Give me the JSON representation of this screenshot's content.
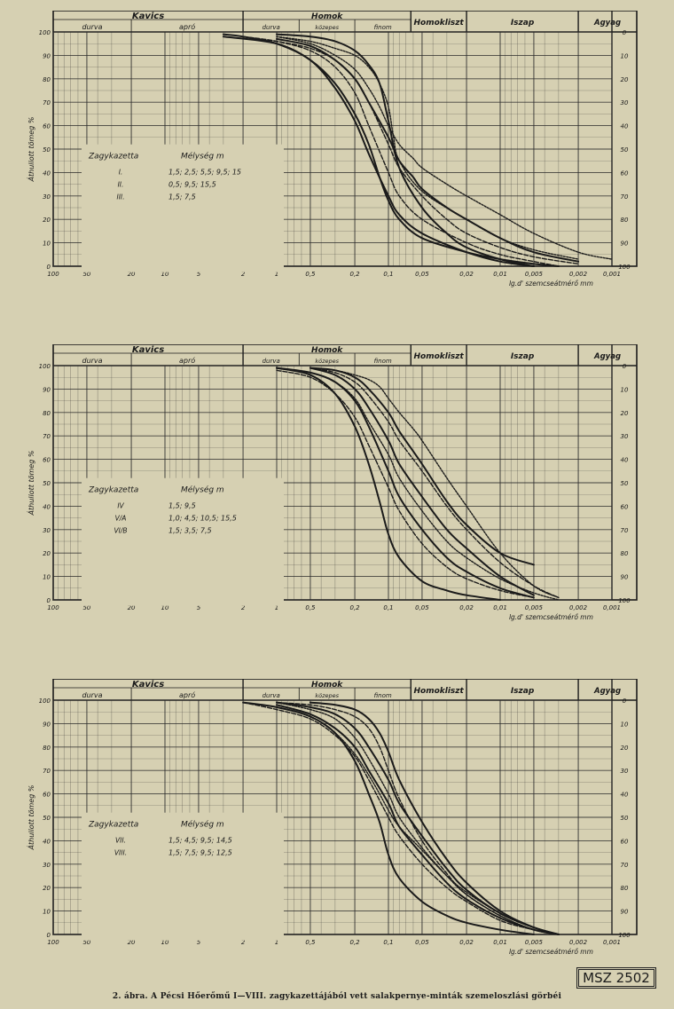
{
  "top_labels": {
    "kavics": "Kavics",
    "durva": "durva",
    "apro": "apró",
    "homok": "Homok",
    "h_durva": "durva",
    "h_kozepes": "közepes",
    "h_finom": "finom",
    "homokliszt": "Homokliszt",
    "iszap": "Iszap",
    "agyag": "Agyag"
  },
  "ylabel": "Áthullott tömeg %",
  "ylabel_right_ticks": [
    "0",
    "10",
    "20",
    "30",
    "40",
    "50",
    "60",
    "70",
    "80",
    "90",
    "100"
  ],
  "xlabel": "lg.d' szemcseátmérő mm",
  "x_tick_labels": [
    "100",
    "50",
    "20",
    "10",
    "5",
    "2",
    "1",
    "0,5",
    "0,2",
    "0,1",
    "0,05",
    "0,02",
    "0,01",
    "0,005",
    "0,002",
    "0,001"
  ],
  "y_tick_labels": [
    "0",
    "10",
    "20",
    "30",
    "40",
    "50",
    "60",
    "70",
    "80",
    "90",
    "100"
  ],
  "legend_header_left": "Zagykazetta",
  "legend_header_right": "Mélység m",
  "chart_data": [
    {
      "type": "line",
      "xscale": "log-reversed",
      "xlim": [
        100,
        0.001
      ],
      "ylim": [
        0,
        100
      ],
      "legend": [
        {
          "name": "I.",
          "depths": "1,5; 2,5; 5,5; 9,5; 15"
        },
        {
          "name": "II.",
          "depths": "0,5; 9,5; 15,5"
        },
        {
          "name": "III.",
          "depths": "1,5; 7,5"
        }
      ],
      "series": [
        {
          "x": [
            3,
            1,
            0.5,
            0.3,
            0.2,
            0.15,
            0.12,
            0.1,
            0.08,
            0.05,
            0.02,
            0.01,
            0.005,
            0.003
          ],
          "y": [
            98,
            95,
            88,
            78,
            65,
            52,
            38,
            28,
            20,
            12,
            6,
            3,
            1,
            0
          ]
        },
        {
          "x": [
            2,
            1,
            0.5,
            0.3,
            0.2,
            0.15,
            0.1,
            0.08,
            0.05,
            0.02,
            0.01,
            0.005,
            0.003
          ],
          "y": [
            98,
            96,
            92,
            85,
            74,
            60,
            40,
            30,
            20,
            10,
            5,
            2,
            0
          ]
        },
        {
          "x": [
            1,
            0.5,
            0.3,
            0.2,
            0.15,
            0.1,
            0.08,
            0.06,
            0.05,
            0.03,
            0.02,
            0.01,
            0.005,
            0.002
          ],
          "y": [
            97,
            94,
            88,
            80,
            70,
            55,
            45,
            38,
            33,
            25,
            20,
            12,
            6,
            2
          ]
        },
        {
          "x": [
            1,
            0.5,
            0.3,
            0.2,
            0.15,
            0.12,
            0.1,
            0.09,
            0.08,
            0.05,
            0.02,
            0.01,
            0.005,
            0.002
          ],
          "y": [
            98,
            96,
            93,
            90,
            85,
            78,
            68,
            55,
            45,
            32,
            20,
            12,
            7,
            3
          ]
        },
        {
          "x": [
            1,
            0.5,
            0.3,
            0.2,
            0.15,
            0.12,
            0.1,
            0.08,
            0.05,
            0.03,
            0.02,
            0.01,
            0.005
          ],
          "y": [
            99,
            98,
            96,
            92,
            86,
            78,
            62,
            42,
            25,
            14,
            8,
            3,
            0
          ]
        },
        {
          "x": [
            2,
            1,
            0.5,
            0.3,
            0.2,
            0.15,
            0.1,
            0.08,
            0.05,
            0.03,
            0.02,
            0.01,
            0.005,
            0.002
          ],
          "y": [
            98,
            96,
            93,
            88,
            80,
            70,
            52,
            42,
            30,
            20,
            14,
            8,
            4,
            1
          ]
        },
        {
          "x": [
            3,
            2,
            1,
            0.5,
            0.3,
            0.2,
            0.15,
            0.1,
            0.08,
            0.05,
            0.02,
            0.01,
            0.005
          ],
          "y": [
            99,
            98,
            95,
            88,
            76,
            62,
            48,
            30,
            22,
            14,
            6,
            2,
            0
          ]
        },
        {
          "x": [
            1,
            0.5,
            0.3,
            0.2,
            0.15,
            0.12,
            0.1,
            0.08,
            0.06,
            0.05,
            0.03,
            0.02,
            0.01,
            0.005,
            0.002,
            0.001
          ],
          "y": [
            98,
            95,
            90,
            84,
            76,
            68,
            60,
            52,
            46,
            42,
            35,
            30,
            22,
            14,
            6,
            3
          ]
        }
      ]
    },
    {
      "type": "line",
      "xscale": "log-reversed",
      "xlim": [
        100,
        0.001
      ],
      "ylim": [
        0,
        100
      ],
      "legend": [
        {
          "name": "IV",
          "depths": "1,5; 9,5"
        },
        {
          "name": "V/A",
          "depths": "1,0; 4,5; 10,5; 15,5"
        },
        {
          "name": "VI/B",
          "depths": "1,5; 3,5; 7,5"
        }
      ],
      "series": [
        {
          "x": [
            1,
            0.5,
            0.3,
            0.2,
            0.15,
            0.12,
            0.1,
            0.08,
            0.05,
            0.03,
            0.02,
            0.01
          ],
          "y": [
            99,
            96,
            88,
            74,
            58,
            42,
            28,
            18,
            8,
            4,
            2,
            0
          ]
        },
        {
          "x": [
            1,
            0.5,
            0.3,
            0.2,
            0.15,
            0.1,
            0.08,
            0.05,
            0.03,
            0.02,
            0.01,
            0.005
          ],
          "y": [
            98,
            95,
            88,
            78,
            66,
            48,
            38,
            24,
            14,
            9,
            4,
            1
          ]
        },
        {
          "x": [
            1,
            0.5,
            0.3,
            0.2,
            0.15,
            0.1,
            0.08,
            0.05,
            0.03,
            0.02,
            0.01,
            0.005
          ],
          "y": [
            99,
            97,
            93,
            85,
            74,
            55,
            44,
            30,
            18,
            12,
            5,
            1
          ]
        },
        {
          "x": [
            1,
            0.5,
            0.3,
            0.2,
            0.15,
            0.1,
            0.08,
            0.05,
            0.03,
            0.02,
            0.01,
            0.005,
            0.003
          ],
          "y": [
            99,
            97,
            93,
            86,
            76,
            62,
            52,
            38,
            25,
            18,
            9,
            3,
            0
          ]
        },
        {
          "x": [
            0.5,
            0.3,
            0.2,
            0.15,
            0.1,
            0.08,
            0.05,
            0.03,
            0.02,
            0.01,
            0.005
          ],
          "y": [
            99,
            96,
            90,
            82,
            68,
            58,
            44,
            30,
            22,
            10,
            2
          ]
        },
        {
          "x": [
            0.5,
            0.3,
            0.2,
            0.15,
            0.1,
            0.08,
            0.05,
            0.03,
            0.02,
            0.01,
            0.005,
            0.003
          ],
          "y": [
            99,
            97,
            93,
            87,
            76,
            68,
            55,
            40,
            30,
            16,
            6,
            1
          ]
        },
        {
          "x": [
            0.5,
            0.3,
            0.2,
            0.15,
            0.1,
            0.08,
            0.05,
            0.03,
            0.02,
            0.01,
            0.005
          ],
          "y": [
            99,
            98,
            95,
            90,
            80,
            72,
            58,
            42,
            32,
            20,
            15
          ]
        },
        {
          "x": [
            0.5,
            0.3,
            0.2,
            0.15,
            0.12,
            0.1,
            0.08,
            0.06,
            0.05,
            0.03,
            0.02,
            0.01,
            0.005,
            0.003
          ],
          "y": [
            99,
            98,
            96,
            94,
            91,
            86,
            80,
            73,
            68,
            52,
            40,
            20,
            6,
            1
          ]
        }
      ]
    },
    {
      "type": "line",
      "xscale": "log-reversed",
      "xlim": [
        100,
        0.001
      ],
      "ylim": [
        0,
        100
      ],
      "legend": [
        {
          "name": "VII.",
          "depths": "1,5; 4,5; 9,5; 14,5"
        },
        {
          "name": "VIII.",
          "depths": "1,5; 7,5; 9,5; 12,5"
        }
      ],
      "series": [
        {
          "x": [
            2,
            1,
            0.5,
            0.3,
            0.2,
            0.15,
            0.12,
            0.1,
            0.08,
            0.05,
            0.03,
            0.02,
            0.01,
            0.005
          ],
          "y": [
            99,
            97,
            93,
            86,
            74,
            60,
            48,
            34,
            24,
            14,
            8,
            5,
            2,
            0
          ]
        },
        {
          "x": [
            2,
            1,
            0.5,
            0.3,
            0.2,
            0.15,
            0.1,
            0.08,
            0.05,
            0.03,
            0.02,
            0.01,
            0.005,
            0.003
          ],
          "y": [
            99,
            96,
            92,
            85,
            76,
            66,
            50,
            42,
            30,
            20,
            14,
            6,
            2,
            0
          ]
        },
        {
          "x": [
            1,
            0.5,
            0.3,
            0.2,
            0.15,
            0.1,
            0.08,
            0.05,
            0.03,
            0.02,
            0.01,
            0.005,
            0.003
          ],
          "y": [
            98,
            94,
            88,
            80,
            70,
            56,
            46,
            34,
            22,
            15,
            7,
            2,
            0
          ]
        },
        {
          "x": [
            1,
            0.5,
            0.3,
            0.2,
            0.15,
            0.1,
            0.08,
            0.05,
            0.03,
            0.02,
            0.01,
            0.005,
            0.003
          ],
          "y": [
            99,
            96,
            92,
            84,
            75,
            60,
            50,
            37,
            25,
            17,
            8,
            2,
            0
          ]
        },
        {
          "x": [
            1,
            0.5,
            0.3,
            0.2,
            0.15,
            0.1,
            0.08,
            0.05,
            0.03,
            0.02,
            0.01,
            0.005,
            0.003
          ],
          "y": [
            99,
            97,
            94,
            88,
            80,
            66,
            56,
            42,
            28,
            19,
            9,
            3,
            0
          ]
        },
        {
          "x": [
            1,
            0.5,
            0.3,
            0.2,
            0.15,
            0.12,
            0.1,
            0.08,
            0.05,
            0.03,
            0.02,
            0.01,
            0.005,
            0.003
          ],
          "y": [
            99,
            98,
            96,
            93,
            88,
            80,
            70,
            58,
            40,
            26,
            17,
            8,
            2,
            0
          ]
        },
        {
          "x": [
            0.5,
            0.3,
            0.2,
            0.15,
            0.12,
            0.1,
            0.08,
            0.05,
            0.03,
            0.02,
            0.01,
            0.005,
            0.003
          ],
          "y": [
            99,
            98,
            96,
            92,
            86,
            78,
            66,
            48,
            32,
            22,
            10,
            3,
            0
          ]
        },
        {
          "x": [
            2,
            1,
            0.5,
            0.3,
            0.2,
            0.15,
            0.12,
            0.1,
            0.08,
            0.05,
            0.03,
            0.02,
            0.01,
            0.005,
            0.003
          ],
          "y": [
            99,
            97,
            93,
            86,
            77,
            68,
            60,
            53,
            46,
            36,
            25,
            18,
            9,
            3,
            0
          ]
        }
      ]
    }
  ],
  "caption": "2. ábra. A Pécsi Hőerőmű I—VIII. zagykazettájából vett salakpernye-minták szemeloszlási görbéi",
  "stamp": "MSZ 2502",
  "colors": {
    "paper": "#d6d0b2",
    "ink": "#1a1a1a",
    "grid": "#2a2a2a"
  }
}
